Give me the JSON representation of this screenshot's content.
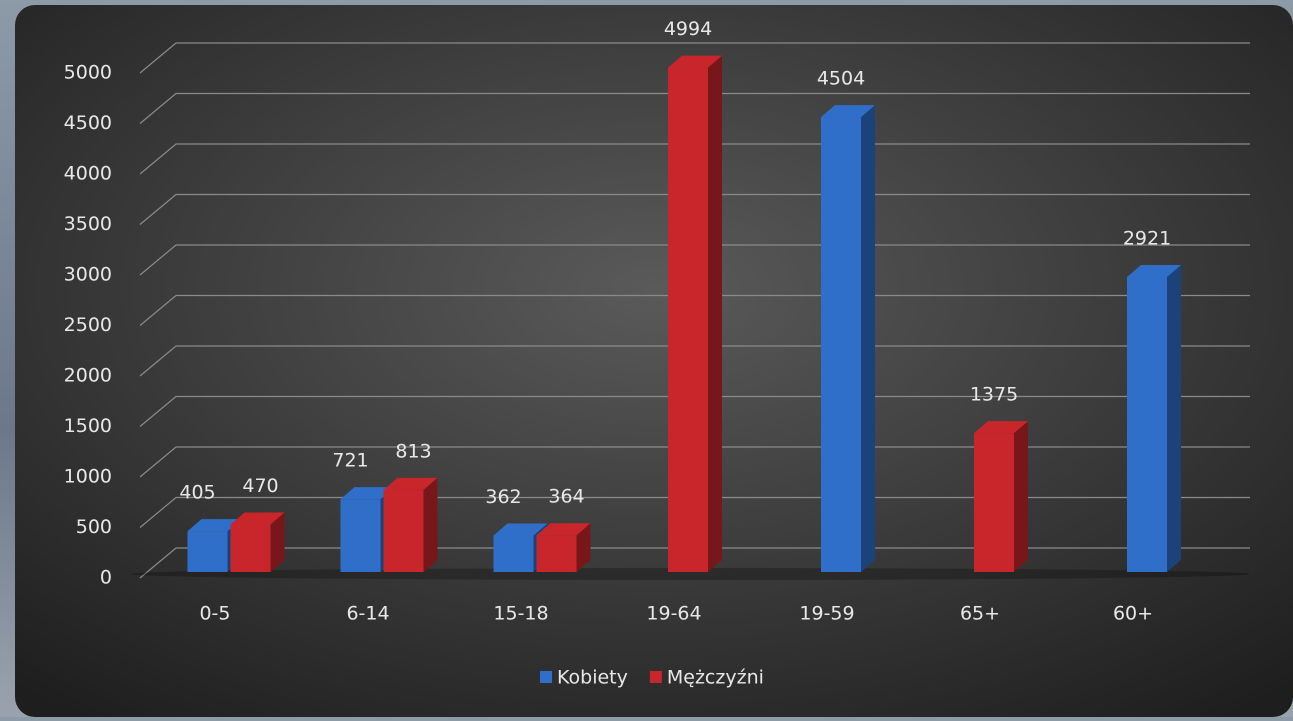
{
  "chart_data": {
    "type": "bar3d",
    "categories": [
      "0-5",
      "6-14",
      "15-18",
      "19-64",
      "19-59",
      "65+",
      "60+"
    ],
    "series": [
      {
        "name": "Kobiety",
        "color": "#2f6fc9",
        "values": [
          405,
          721,
          362,
          null,
          4504,
          null,
          2921
        ]
      },
      {
        "name": "Mężczyźni",
        "color": "#c8262a",
        "values": [
          470,
          813,
          364,
          4994,
          null,
          1375,
          null
        ]
      }
    ],
    "ylim": [
      0,
      5000
    ],
    "yticks": [
      0,
      500,
      1000,
      1500,
      2000,
      2500,
      3000,
      3500,
      4000,
      4500,
      5000
    ],
    "grid": true,
    "legend": "bottom"
  }
}
